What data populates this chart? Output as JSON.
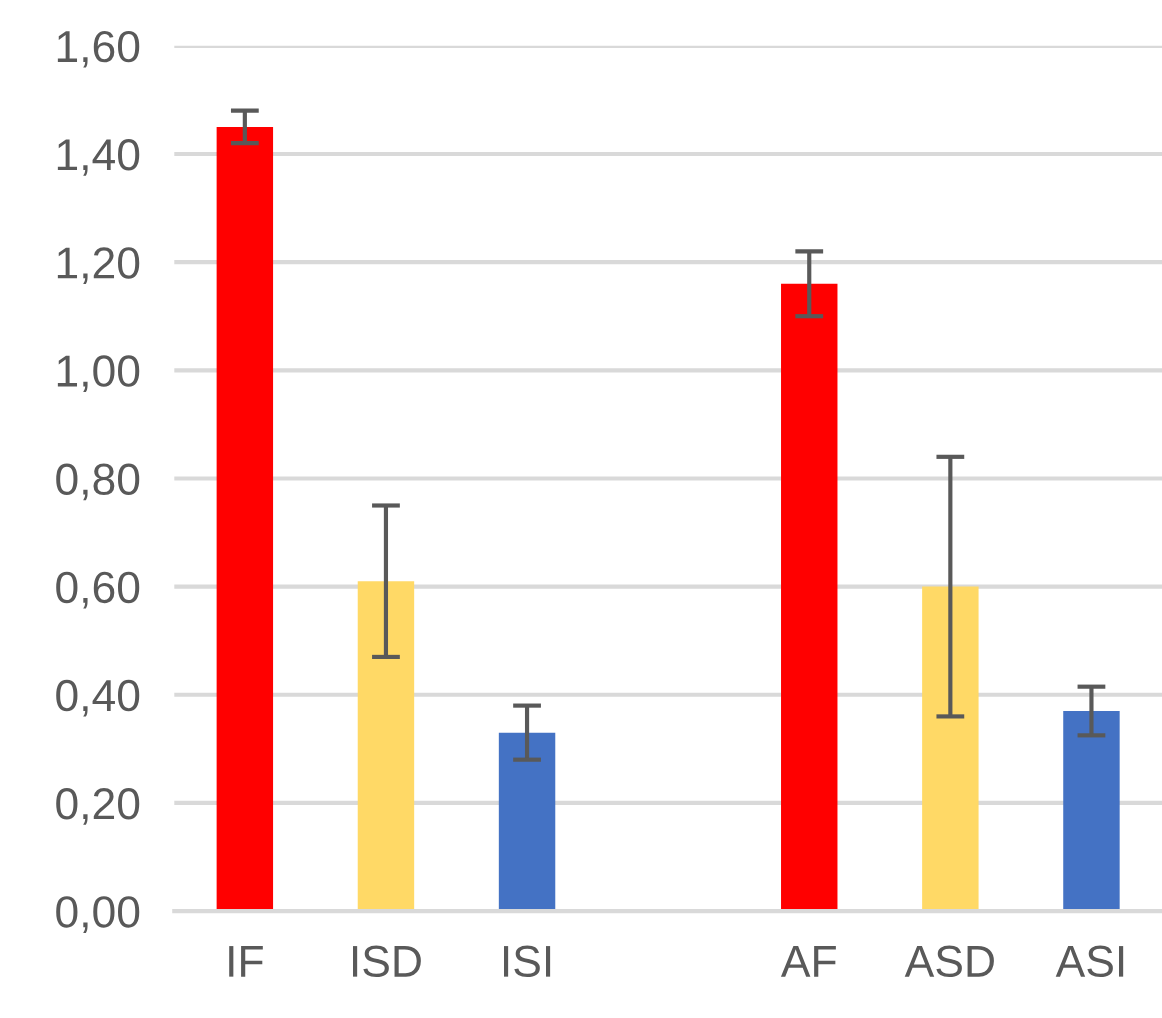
{
  "chart_data": {
    "type": "bar",
    "categories": [
      "IF",
      "ISD",
      "ISI",
      null,
      "AF",
      "ASD",
      "ASI"
    ],
    "values": [
      1.45,
      0.61,
      0.33,
      null,
      1.16,
      0.6,
      0.37
    ],
    "errors": [
      0.03,
      0.14,
      0.05,
      null,
      0.06,
      0.24,
      0.045
    ],
    "colors": [
      "#ff0000",
      "#ffd966",
      "#4472c4",
      null,
      "#ff0000",
      "#ffd966",
      "#4472c4"
    ],
    "ylim": [
      0,
      1.6
    ],
    "yticks": [
      {
        "value": 0,
        "label": "0,00"
      },
      {
        "value": 0.2,
        "label": "0,20"
      },
      {
        "value": 0.4,
        "label": "0,40"
      },
      {
        "value": 0.6,
        "label": "0,60"
      },
      {
        "value": 0.8,
        "label": "0,80"
      },
      {
        "value": 1.0,
        "label": "1,00"
      },
      {
        "value": 1.2,
        "label": "1,20"
      },
      {
        "value": 1.4,
        "label": "1,40"
      },
      {
        "value": 1.6,
        "label": "1,60"
      }
    ],
    "grid": "y"
  }
}
